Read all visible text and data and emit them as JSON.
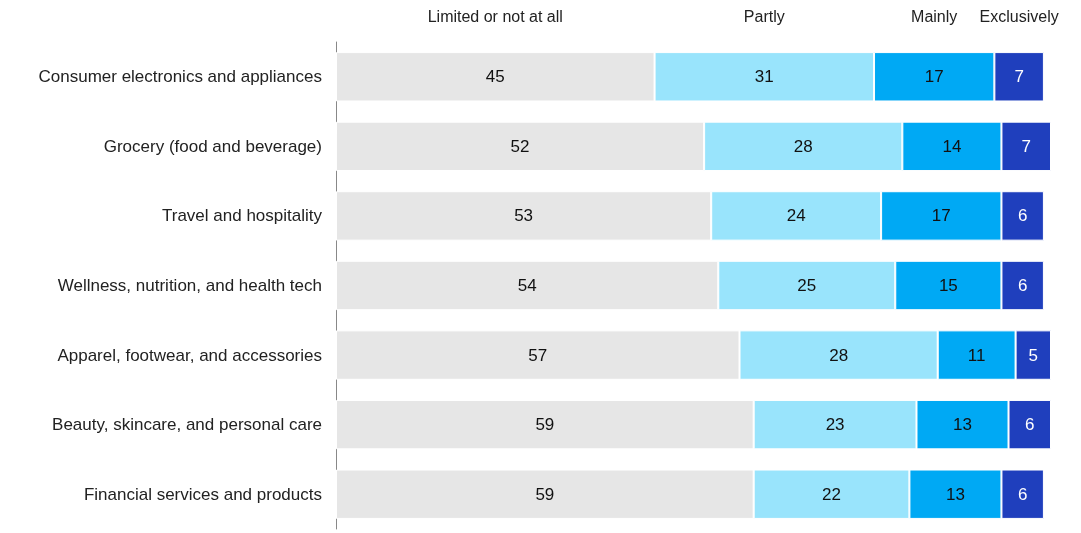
{
  "chart_data": {
    "type": "bar",
    "orientation": "horizontal",
    "stacked": true,
    "data_labels": true,
    "legend": "top",
    "categories": [
      "Consumer electronics and appliances",
      "Grocery (food and beverage)",
      "Travel and hospitality",
      "Wellness, nutrition, and health tech",
      "Apparel, footwear, and accessories",
      "Beauty, skincare, and personal care",
      "Financial services and products"
    ],
    "series": [
      {
        "name": "Limited or not at all",
        "color": "#e6e6e6",
        "values": [
          45,
          52,
          53,
          54,
          57,
          59,
          59
        ]
      },
      {
        "name": "Partly",
        "color": "#99e4fc",
        "values": [
          31,
          28,
          24,
          25,
          28,
          23,
          22
        ]
      },
      {
        "name": "Mainly",
        "color": "#00a9f4",
        "values": [
          17,
          14,
          17,
          15,
          11,
          13,
          13
        ]
      },
      {
        "name": "Exclusively",
        "color": "#1f3fbd",
        "values": [
          7,
          7,
          6,
          6,
          5,
          6,
          6
        ]
      }
    ]
  }
}
